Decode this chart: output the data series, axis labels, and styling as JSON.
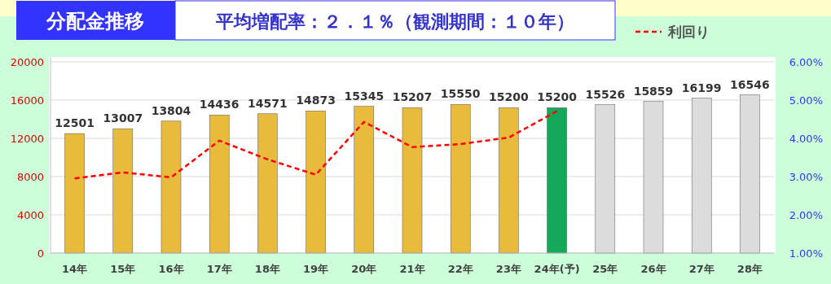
{
  "chart_data": {
    "type": "bar",
    "title": "分配金推移",
    "subtitle": "平均増配率：２．１％（観測期間：１０年）",
    "categories": [
      "14年",
      "15年",
      "16年",
      "17年",
      "18年",
      "19年",
      "20年",
      "21年",
      "22年",
      "23年",
      "24年(予)",
      "25年",
      "26年",
      "27年",
      "28年"
    ],
    "series": [
      {
        "values": [
          12501,
          13007,
          13804,
          14436,
          14571,
          14873,
          15345,
          15207,
          15550,
          15200,
          15200,
          15526,
          15859,
          16199,
          16546
        ],
        "value_labels": [
          "12501",
          "13007",
          "13804",
          "14436",
          "14571",
          "14873",
          "15345",
          "15207",
          "15550",
          "15200",
          "15200",
          "15526",
          "15859",
          "16199",
          "16546"
        ],
        "colors": [
          "#e8bb3c",
          "#e8bb3c",
          "#e8bb3c",
          "#e8bb3c",
          "#e8bb3c",
          "#e8bb3c",
          "#e8bb3c",
          "#e8bb3c",
          "#e8bb3c",
          "#e8bb3c",
          "#13a85a",
          "#dcdcdc",
          "#dcdcdc",
          "#dcdcdc",
          "#dcdcdc"
        ]
      },
      {
        "type": "line",
        "name": "利回り",
        "axis": "y2",
        "color": "#ff0000",
        "line_style": "dashed",
        "values": [
          2.95,
          3.11,
          2.98,
          3.94,
          3.45,
          3.05,
          4.43,
          3.77,
          3.85,
          4.02,
          4.71,
          null,
          null,
          null,
          null
        ]
      }
    ],
    "ylim": [
      0,
      20000
    ],
    "yticks": [
      0,
      4000,
      8000,
      12000,
      16000,
      20000
    ],
    "y2lim": [
      1,
      6
    ],
    "y2ticks": [
      {
        "value": 1,
        "label": "1.00%"
      },
      {
        "value": 2,
        "label": "2.00%"
      },
      {
        "value": 3,
        "label": "3.00%"
      },
      {
        "value": 4,
        "label": "4.00%"
      },
      {
        "value": 5,
        "label": "5.00%"
      },
      {
        "value": 6,
        "label": "6.00%"
      }
    ],
    "grid": "y",
    "legend": "top right"
  }
}
